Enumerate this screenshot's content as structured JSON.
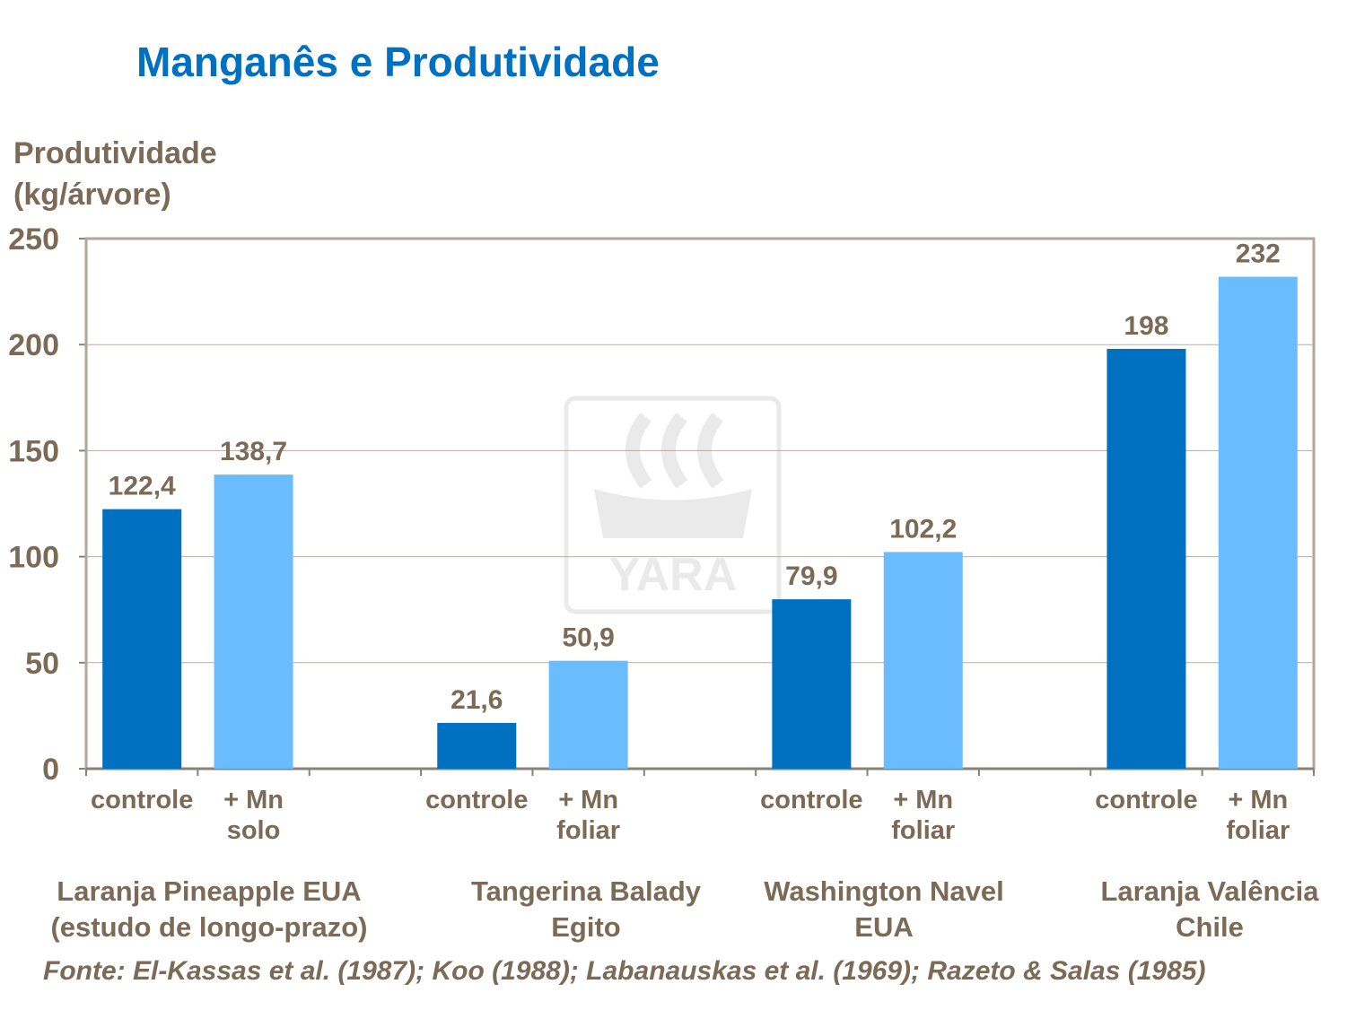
{
  "chart_data": {
    "type": "bar",
    "title": "Manganês e Produtividade",
    "ylabel": [
      "Produtividade",
      "(kg/árvore)"
    ],
    "ylim": [
      0,
      250
    ],
    "yticks": [
      0,
      50,
      100,
      150,
      200,
      250
    ],
    "grid": true,
    "categories": [
      {
        "label": [
          "controle"
        ],
        "value": 122.4,
        "data_label": "122,4",
        "type": "controle"
      },
      {
        "label": [
          "+ Mn",
          "solo"
        ],
        "value": 138.7,
        "data_label": "138,7",
        "type": "mn"
      },
      {
        "label": [],
        "value": null
      },
      {
        "label": [
          "controle"
        ],
        "value": 21.6,
        "data_label": "21,6",
        "type": "controle"
      },
      {
        "label": [
          "+ Mn",
          "foliar"
        ],
        "value": 50.9,
        "data_label": "50,9",
        "type": "mn"
      },
      {
        "label": [],
        "value": null
      },
      {
        "label": [
          "controle"
        ],
        "value": 79.9,
        "data_label": "79,9",
        "type": "controle"
      },
      {
        "label": [
          "+ Mn",
          "foliar"
        ],
        "value": 102.2,
        "data_label": "102,2",
        "type": "mn"
      },
      {
        "label": [],
        "value": null
      },
      {
        "label": [
          "controle"
        ],
        "value": 198,
        "data_label": "198",
        "type": "controle"
      },
      {
        "label": [
          "+ Mn",
          "foliar"
        ],
        "value": 232,
        "data_label": "232",
        "type": "mn"
      }
    ],
    "groups": [
      [
        "Laranja Pineapple EUA",
        "(estudo de longo-prazo)"
      ],
      [
        "Tangerina Balady",
        "Egito"
      ],
      [
        "Washington Navel",
        "EUA"
      ],
      [
        "Laranja Valência",
        "Chile"
      ]
    ],
    "source": "Fonte: El-Kassas et al. (1987); Koo (1988); Labanauskas et al. (1969); Razeto & Salas (1985)",
    "colors": {
      "controle": "#0070c0",
      "mn": "#69bdff",
      "text": "#7b6a56",
      "title": "#0070c0"
    }
  },
  "watermark": "YARA"
}
